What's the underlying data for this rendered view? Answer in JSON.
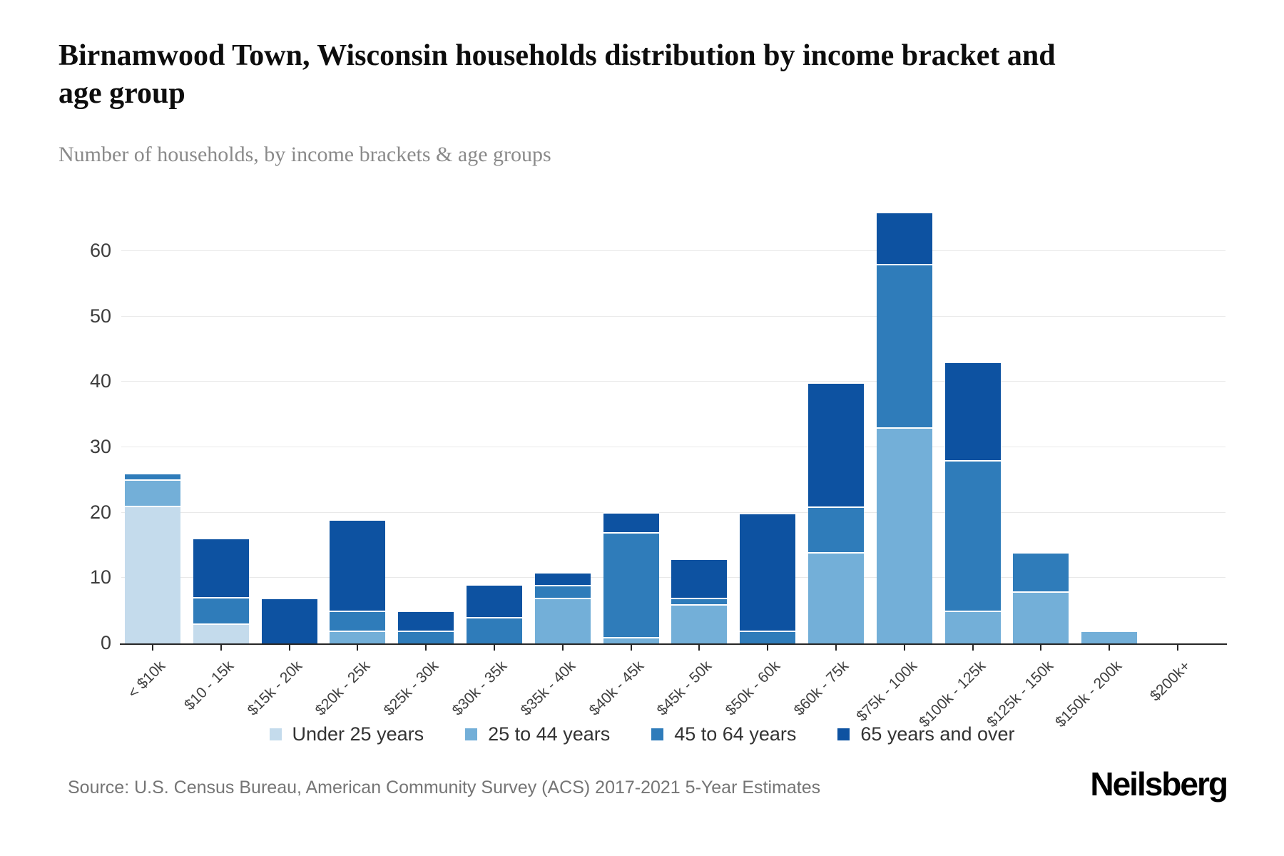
{
  "header": {
    "title": "Birnamwood Town, Wisconsin households distribution by income bracket and age group",
    "subtitle": "Number of households, by income brackets & age groups"
  },
  "footer": {
    "source": "Source: U.S. Census Bureau, American Community Survey (ACS) 2017-2021 5-Year Estimates",
    "brand": "Neilsberg"
  },
  "colors": {
    "under25": "#c4dbec",
    "age25to44": "#73afd8",
    "age45to64": "#2f7cba",
    "age65plus": "#0d52a1",
    "grid": "#e9e9e9",
    "axis": "#262626"
  },
  "chart_data": {
    "type": "bar",
    "stacked": true,
    "title": "Birnamwood Town, Wisconsin households distribution by income bracket and age group",
    "subtitle": "Number of households, by income brackets & age groups",
    "xlabel": "",
    "ylabel": "Number of households",
    "yticks": [
      0,
      10,
      20,
      30,
      40,
      50,
      60
    ],
    "ylim": [
      0,
      66
    ],
    "grid": true,
    "legend_position": "bottom",
    "categories": [
      "< $10k",
      "$10 - 15k",
      "$15k - 20k",
      "$20k - 25k",
      "$25k - 30k",
      "$30k - 35k",
      "$35k - 40k",
      "$40k - 45k",
      "$45k - 50k",
      "$50k - 60k",
      "$60k - 75k",
      "$75k - 100k",
      "$100k - 125k",
      "$125k - 150k",
      "$150k - 200k",
      "$200k+"
    ],
    "series": [
      {
        "name": "Under 25 years",
        "color_key": "under25",
        "values": [
          21,
          3,
          0,
          0,
          0,
          0,
          0,
          0,
          0,
          0,
          0,
          0,
          0,
          0,
          0,
          0
        ]
      },
      {
        "name": "25 to 44 years",
        "color_key": "age25to44",
        "values": [
          4,
          0,
          0,
          2,
          0,
          0,
          7,
          1,
          6,
          0,
          14,
          33,
          5,
          8,
          2,
          0
        ]
      },
      {
        "name": "45 to 64 years",
        "color_key": "age45to64",
        "values": [
          1,
          4,
          0,
          3,
          2,
          4,
          2,
          16,
          1,
          2,
          7,
          25,
          23,
          6,
          0,
          0
        ]
      },
      {
        "name": "65 years and over",
        "color_key": "age65plus",
        "values": [
          0,
          9,
          7,
          14,
          3,
          5,
          2,
          3,
          6,
          18,
          19,
          8,
          15,
          0,
          0,
          0
        ]
      }
    ],
    "bar_totals": [
      26,
      16,
      7,
      19,
      5,
      9,
      11,
      20,
      13,
      20,
      40,
      66,
      43,
      14,
      2,
      0
    ]
  }
}
